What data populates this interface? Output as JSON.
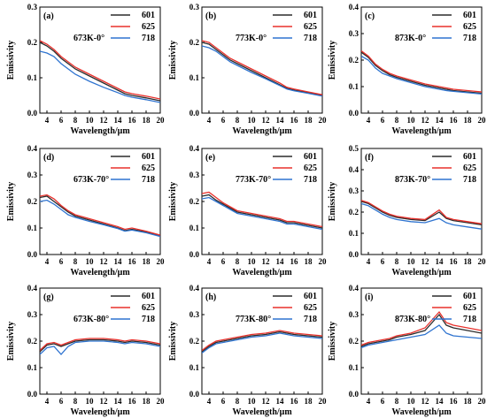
{
  "figure": {
    "series_colors": {
      "601": "#2b2b2b",
      "625": "#e8302b",
      "718": "#2f74d0"
    },
    "panels": [
      {
        "label": "(a)",
        "condition": "673K-0°",
        "xlabel": "Wavelength/μm",
        "ylabel": "Emissivity",
        "legend": [
          "601",
          "625",
          "718"
        ],
        "legend_position": "top-right",
        "xlim": [
          3,
          20
        ],
        "ylim": [
          0,
          0.3
        ],
        "xticks": [
          "4",
          "6",
          "8",
          "10",
          "12",
          "14",
          "16",
          "18",
          "20"
        ],
        "yticks": [
          "0.0",
          "0.1",
          "0.2",
          "0.3"
        ]
      },
      {
        "label": "(b)",
        "condition": "773K-0°",
        "xlabel": "Wavelength/μm",
        "ylabel": "Emissivity",
        "legend": [
          "601",
          "625",
          "718"
        ],
        "legend_position": "top-right",
        "xlim": [
          3,
          20
        ],
        "ylim": [
          0,
          0.3
        ],
        "xticks": [
          "4",
          "6",
          "8",
          "10",
          "12",
          "14",
          "16",
          "18",
          "20"
        ],
        "yticks": [
          "0.0",
          "0.1",
          "0.2",
          "0.3"
        ]
      },
      {
        "label": "(c)",
        "condition": "873K-0°",
        "xlabel": "Wavelength/μm",
        "ylabel": "Emissivity",
        "legend": [
          "601",
          "625",
          "718"
        ],
        "legend_position": "top-right",
        "xlim": [
          3,
          20
        ],
        "ylim": [
          0,
          0.4
        ],
        "xticks": [
          "4",
          "6",
          "8",
          "10",
          "12",
          "14",
          "16",
          "18",
          "20"
        ],
        "yticks": [
          "0.0",
          "0.1",
          "0.2",
          "0.3",
          "0.4"
        ]
      },
      {
        "label": "(d)",
        "condition": "673K-70°",
        "xlabel": "Wavelength/μm",
        "ylabel": "Emissivity",
        "legend": [
          "601",
          "625",
          "718"
        ],
        "legend_position": "top-right",
        "xlim": [
          3,
          20
        ],
        "ylim": [
          0,
          0.4
        ],
        "xticks": [
          "4",
          "6",
          "8",
          "10",
          "12",
          "14",
          "16",
          "18",
          "20"
        ],
        "yticks": [
          "0.0",
          "0.1",
          "0.2",
          "0.3",
          "0.4"
        ]
      },
      {
        "label": "(e)",
        "condition": "773K-70°",
        "xlabel": "Wavelength/μm",
        "ylabel": "Emissivity",
        "legend": [
          "601",
          "625",
          "718"
        ],
        "legend_position": "top-right",
        "xlim": [
          3,
          20
        ],
        "ylim": [
          0,
          0.4
        ],
        "xticks": [
          "4",
          "6",
          "8",
          "10",
          "12",
          "14",
          "16",
          "18",
          "20"
        ],
        "yticks": [
          "0.0",
          "0.1",
          "0.2",
          "0.3",
          "0.4"
        ]
      },
      {
        "label": "(f)",
        "condition": "873K-70°",
        "xlabel": "Wavelength/μm",
        "ylabel": "Emissivity",
        "legend": [
          "601",
          "625",
          "718"
        ],
        "legend_position": "top-right",
        "xlim": [
          3,
          20
        ],
        "ylim": [
          0,
          0.5
        ],
        "xticks": [
          "4",
          "6",
          "8",
          "10",
          "12",
          "14",
          "16",
          "18",
          "20"
        ],
        "yticks": [
          "0.0",
          "0.1",
          "0.2",
          "0.3",
          "0.4",
          "0.5"
        ]
      },
      {
        "label": "(g)",
        "condition": "673K-80°",
        "xlabel": "Wavelength/μm",
        "ylabel": "Emissivity",
        "legend": [
          "601",
          "625",
          "718"
        ],
        "legend_position": "top-right",
        "xlim": [
          3,
          20
        ],
        "ylim": [
          0,
          0.4
        ],
        "xticks": [
          "4",
          "6",
          "8",
          "10",
          "12",
          "14",
          "16",
          "18",
          "20"
        ],
        "yticks": [
          "0.0",
          "0.1",
          "0.2",
          "0.3",
          "0.4"
        ]
      },
      {
        "label": "(h)",
        "condition": "773K-80°",
        "xlabel": "Wavelength/μm",
        "ylabel": "Emissivity",
        "legend": [
          "601",
          "625",
          "718"
        ],
        "legend_position": "top-right",
        "xlim": [
          3,
          20
        ],
        "ylim": [
          0,
          0.4
        ],
        "xticks": [
          "4",
          "6",
          "8",
          "10",
          "12",
          "14",
          "16",
          "18",
          "20"
        ],
        "yticks": [
          "0.0",
          "0.1",
          "0.2",
          "0.3",
          "0.4"
        ]
      },
      {
        "label": "(i)",
        "condition": "873K-80°",
        "xlabel": "Wavelength/μm",
        "ylabel": "Emissivity",
        "legend": [
          "601",
          "625",
          "718"
        ],
        "legend_position": "top-right",
        "xlim": [
          3,
          20
        ],
        "ylim": [
          0,
          0.4
        ],
        "xticks": [
          "4",
          "6",
          "8",
          "10",
          "12",
          "14",
          "16",
          "18",
          "20"
        ],
        "yticks": [
          "0.0",
          "0.1",
          "0.2",
          "0.3",
          "0.4"
        ]
      }
    ]
  },
  "chart_data": [
    {
      "type": "line",
      "title": "673K-0°",
      "xlabel": "Wavelength/μm",
      "ylabel": "Emissivity",
      "xlim": [
        3,
        20
      ],
      "ylim": [
        0,
        0.3
      ],
      "grid": false,
      "legend_position": "top-right",
      "x": [
        3,
        4,
        5,
        6,
        7,
        8,
        10,
        12,
        14,
        15,
        16,
        18,
        20
      ],
      "series": [
        {
          "name": "601",
          "values": [
            0.2,
            0.19,
            0.175,
            0.155,
            0.14,
            0.125,
            0.105,
            0.085,
            0.065,
            0.055,
            0.05,
            0.043,
            0.035
          ]
        },
        {
          "name": "625",
          "values": [
            0.205,
            0.195,
            0.18,
            0.16,
            0.145,
            0.13,
            0.11,
            0.09,
            0.07,
            0.06,
            0.055,
            0.048,
            0.04
          ]
        },
        {
          "name": "718",
          "values": [
            0.175,
            0.17,
            0.16,
            0.14,
            0.125,
            0.11,
            0.09,
            0.073,
            0.058,
            0.05,
            0.045,
            0.038,
            0.03
          ]
        }
      ]
    },
    {
      "type": "line",
      "title": "773K-0°",
      "xlabel": "Wavelength/μm",
      "ylabel": "Emissivity",
      "xlim": [
        3,
        20
      ],
      "ylim": [
        0,
        0.3
      ],
      "grid": false,
      "legend_position": "top-right",
      "x": [
        3,
        4,
        5,
        6,
        7,
        8,
        10,
        12,
        14,
        15,
        16,
        18,
        20
      ],
      "series": [
        {
          "name": "601",
          "values": [
            0.2,
            0.195,
            0.18,
            0.165,
            0.15,
            0.14,
            0.12,
            0.1,
            0.08,
            0.07,
            0.065,
            0.058,
            0.05
          ]
        },
        {
          "name": "625",
          "values": [
            0.205,
            0.2,
            0.185,
            0.17,
            0.155,
            0.145,
            0.125,
            0.105,
            0.085,
            0.073,
            0.068,
            0.06,
            0.052
          ]
        },
        {
          "name": "718",
          "values": [
            0.19,
            0.185,
            0.175,
            0.16,
            0.145,
            0.135,
            0.115,
            0.097,
            0.078,
            0.068,
            0.063,
            0.056,
            0.048
          ]
        }
      ]
    },
    {
      "type": "line",
      "title": "873K-0°",
      "xlabel": "Wavelength/μm",
      "ylabel": "Emissivity",
      "xlim": [
        3,
        20
      ],
      "ylim": [
        0,
        0.4
      ],
      "grid": false,
      "legend_position": "top-right",
      "x": [
        3,
        4,
        5,
        6,
        7,
        8,
        10,
        12,
        14,
        15,
        16,
        18,
        20
      ],
      "series": [
        {
          "name": "601",
          "values": [
            0.23,
            0.21,
            0.18,
            0.16,
            0.145,
            0.135,
            0.12,
            0.105,
            0.095,
            0.09,
            0.085,
            0.08,
            0.075
          ]
        },
        {
          "name": "625",
          "values": [
            0.235,
            0.215,
            0.185,
            0.165,
            0.15,
            0.14,
            0.125,
            0.11,
            0.1,
            0.095,
            0.09,
            0.085,
            0.08
          ]
        },
        {
          "name": "718",
          "values": [
            0.215,
            0.2,
            0.17,
            0.15,
            0.14,
            0.13,
            0.115,
            0.1,
            0.09,
            0.085,
            0.082,
            0.077,
            0.072
          ]
        }
      ]
    },
    {
      "type": "line",
      "title": "673K-70°",
      "xlabel": "Wavelength/μm",
      "ylabel": "Emissivity",
      "xlim": [
        3,
        20
      ],
      "ylim": [
        0,
        0.4
      ],
      "grid": false,
      "legend_position": "top-right",
      "x": [
        3,
        4,
        5,
        6,
        7,
        8,
        10,
        12,
        14,
        15,
        16,
        18,
        20
      ],
      "series": [
        {
          "name": "601",
          "values": [
            0.215,
            0.22,
            0.2,
            0.18,
            0.16,
            0.145,
            0.13,
            0.115,
            0.1,
            0.09,
            0.095,
            0.085,
            0.07
          ]
        },
        {
          "name": "625",
          "values": [
            0.22,
            0.225,
            0.21,
            0.185,
            0.165,
            0.15,
            0.135,
            0.12,
            0.105,
            0.095,
            0.1,
            0.088,
            0.073
          ]
        },
        {
          "name": "718",
          "values": [
            0.2,
            0.205,
            0.19,
            0.17,
            0.15,
            0.14,
            0.125,
            0.112,
            0.098,
            0.088,
            0.092,
            0.082,
            0.068
          ]
        }
      ]
    },
    {
      "type": "line",
      "title": "773K-70°",
      "xlabel": "Wavelength/μm",
      "ylabel": "Emissivity",
      "xlim": [
        3,
        20
      ],
      "ylim": [
        0,
        0.4
      ],
      "grid": false,
      "legend_position": "top-right",
      "x": [
        3,
        4,
        5,
        6,
        7,
        8,
        10,
        12,
        14,
        15,
        16,
        18,
        20
      ],
      "series": [
        {
          "name": "601",
          "values": [
            0.22,
            0.225,
            0.205,
            0.19,
            0.175,
            0.16,
            0.15,
            0.14,
            0.13,
            0.12,
            0.12,
            0.11,
            0.1
          ]
        },
        {
          "name": "625",
          "values": [
            0.23,
            0.235,
            0.215,
            0.195,
            0.18,
            0.165,
            0.155,
            0.145,
            0.135,
            0.125,
            0.125,
            0.115,
            0.105
          ]
        },
        {
          "name": "718",
          "values": [
            0.21,
            0.215,
            0.2,
            0.185,
            0.17,
            0.155,
            0.145,
            0.135,
            0.125,
            0.115,
            0.115,
            0.105,
            0.095
          ]
        }
      ]
    },
    {
      "type": "line",
      "title": "873K-70°",
      "xlabel": "Wavelength/μm",
      "ylabel": "Emissivity",
      "xlim": [
        3,
        20
      ],
      "ylim": [
        0,
        0.5
      ],
      "grid": false,
      "legend_position": "top-right",
      "x": [
        3,
        4,
        5,
        6,
        7,
        8,
        10,
        12,
        14,
        15,
        16,
        18,
        20
      ],
      "series": [
        {
          "name": "601",
          "values": [
            0.25,
            0.24,
            0.22,
            0.2,
            0.185,
            0.175,
            0.165,
            0.16,
            0.2,
            0.17,
            0.16,
            0.15,
            0.14
          ]
        },
        {
          "name": "625",
          "values": [
            0.255,
            0.245,
            0.225,
            0.205,
            0.19,
            0.18,
            0.17,
            0.165,
            0.21,
            0.175,
            0.165,
            0.155,
            0.145
          ]
        },
        {
          "name": "718",
          "values": [
            0.24,
            0.23,
            0.21,
            0.19,
            0.175,
            0.165,
            0.155,
            0.15,
            0.17,
            0.15,
            0.14,
            0.13,
            0.12
          ]
        }
      ]
    },
    {
      "type": "line",
      "title": "673K-80°",
      "xlabel": "Wavelength/μm",
      "ylabel": "Emissivity",
      "xlim": [
        3,
        20
      ],
      "ylim": [
        0,
        0.4
      ],
      "grid": false,
      "legend_position": "top-right",
      "x": [
        3,
        4,
        5,
        6,
        7,
        8,
        10,
        12,
        14,
        15,
        16,
        18,
        20
      ],
      "series": [
        {
          "name": "601",
          "values": [
            0.16,
            0.185,
            0.19,
            0.18,
            0.19,
            0.2,
            0.205,
            0.205,
            0.2,
            0.195,
            0.2,
            0.195,
            0.185
          ]
        },
        {
          "name": "625",
          "values": [
            0.165,
            0.19,
            0.195,
            0.185,
            0.195,
            0.205,
            0.21,
            0.21,
            0.205,
            0.2,
            0.205,
            0.2,
            0.19
          ]
        },
        {
          "name": "718",
          "values": [
            0.15,
            0.175,
            0.18,
            0.15,
            0.18,
            0.195,
            0.2,
            0.2,
            0.195,
            0.19,
            0.195,
            0.19,
            0.18
          ]
        }
      ]
    },
    {
      "type": "line",
      "title": "773K-80°",
      "xlabel": "Wavelength/μm",
      "ylabel": "Emissivity",
      "xlim": [
        3,
        20
      ],
      "ylim": [
        0,
        0.4
      ],
      "grid": false,
      "legend_position": "top-right",
      "x": [
        3,
        4,
        5,
        6,
        7,
        8,
        10,
        12,
        14,
        15,
        16,
        18,
        20
      ],
      "series": [
        {
          "name": "601",
          "values": [
            0.16,
            0.18,
            0.195,
            0.2,
            0.205,
            0.21,
            0.22,
            0.225,
            0.235,
            0.23,
            0.225,
            0.22,
            0.215
          ]
        },
        {
          "name": "625",
          "values": [
            0.165,
            0.185,
            0.2,
            0.205,
            0.21,
            0.215,
            0.225,
            0.23,
            0.24,
            0.235,
            0.23,
            0.225,
            0.22
          ]
        },
        {
          "name": "718",
          "values": [
            0.155,
            0.175,
            0.19,
            0.195,
            0.2,
            0.205,
            0.215,
            0.22,
            0.23,
            0.225,
            0.22,
            0.215,
            0.21
          ]
        }
      ]
    },
    {
      "type": "line",
      "title": "873K-80°",
      "xlabel": "Wavelength/μm",
      "ylabel": "Emissivity",
      "xlim": [
        3,
        20
      ],
      "ylim": [
        0,
        0.4
      ],
      "grid": false,
      "legend_position": "top-right",
      "x": [
        3,
        4,
        5,
        6,
        7,
        8,
        10,
        12,
        14,
        15,
        16,
        18,
        20
      ],
      "series": [
        {
          "name": "601",
          "values": [
            0.18,
            0.19,
            0.195,
            0.2,
            0.205,
            0.215,
            0.225,
            0.24,
            0.3,
            0.26,
            0.25,
            0.24,
            0.23
          ]
        },
        {
          "name": "625",
          "values": [
            0.185,
            0.195,
            0.2,
            0.205,
            0.21,
            0.22,
            0.23,
            0.25,
            0.31,
            0.27,
            0.26,
            0.25,
            0.24
          ]
        },
        {
          "name": "718",
          "values": [
            0.175,
            0.185,
            0.19,
            0.195,
            0.2,
            0.205,
            0.215,
            0.225,
            0.26,
            0.23,
            0.22,
            0.215,
            0.21
          ]
        }
      ]
    }
  ]
}
